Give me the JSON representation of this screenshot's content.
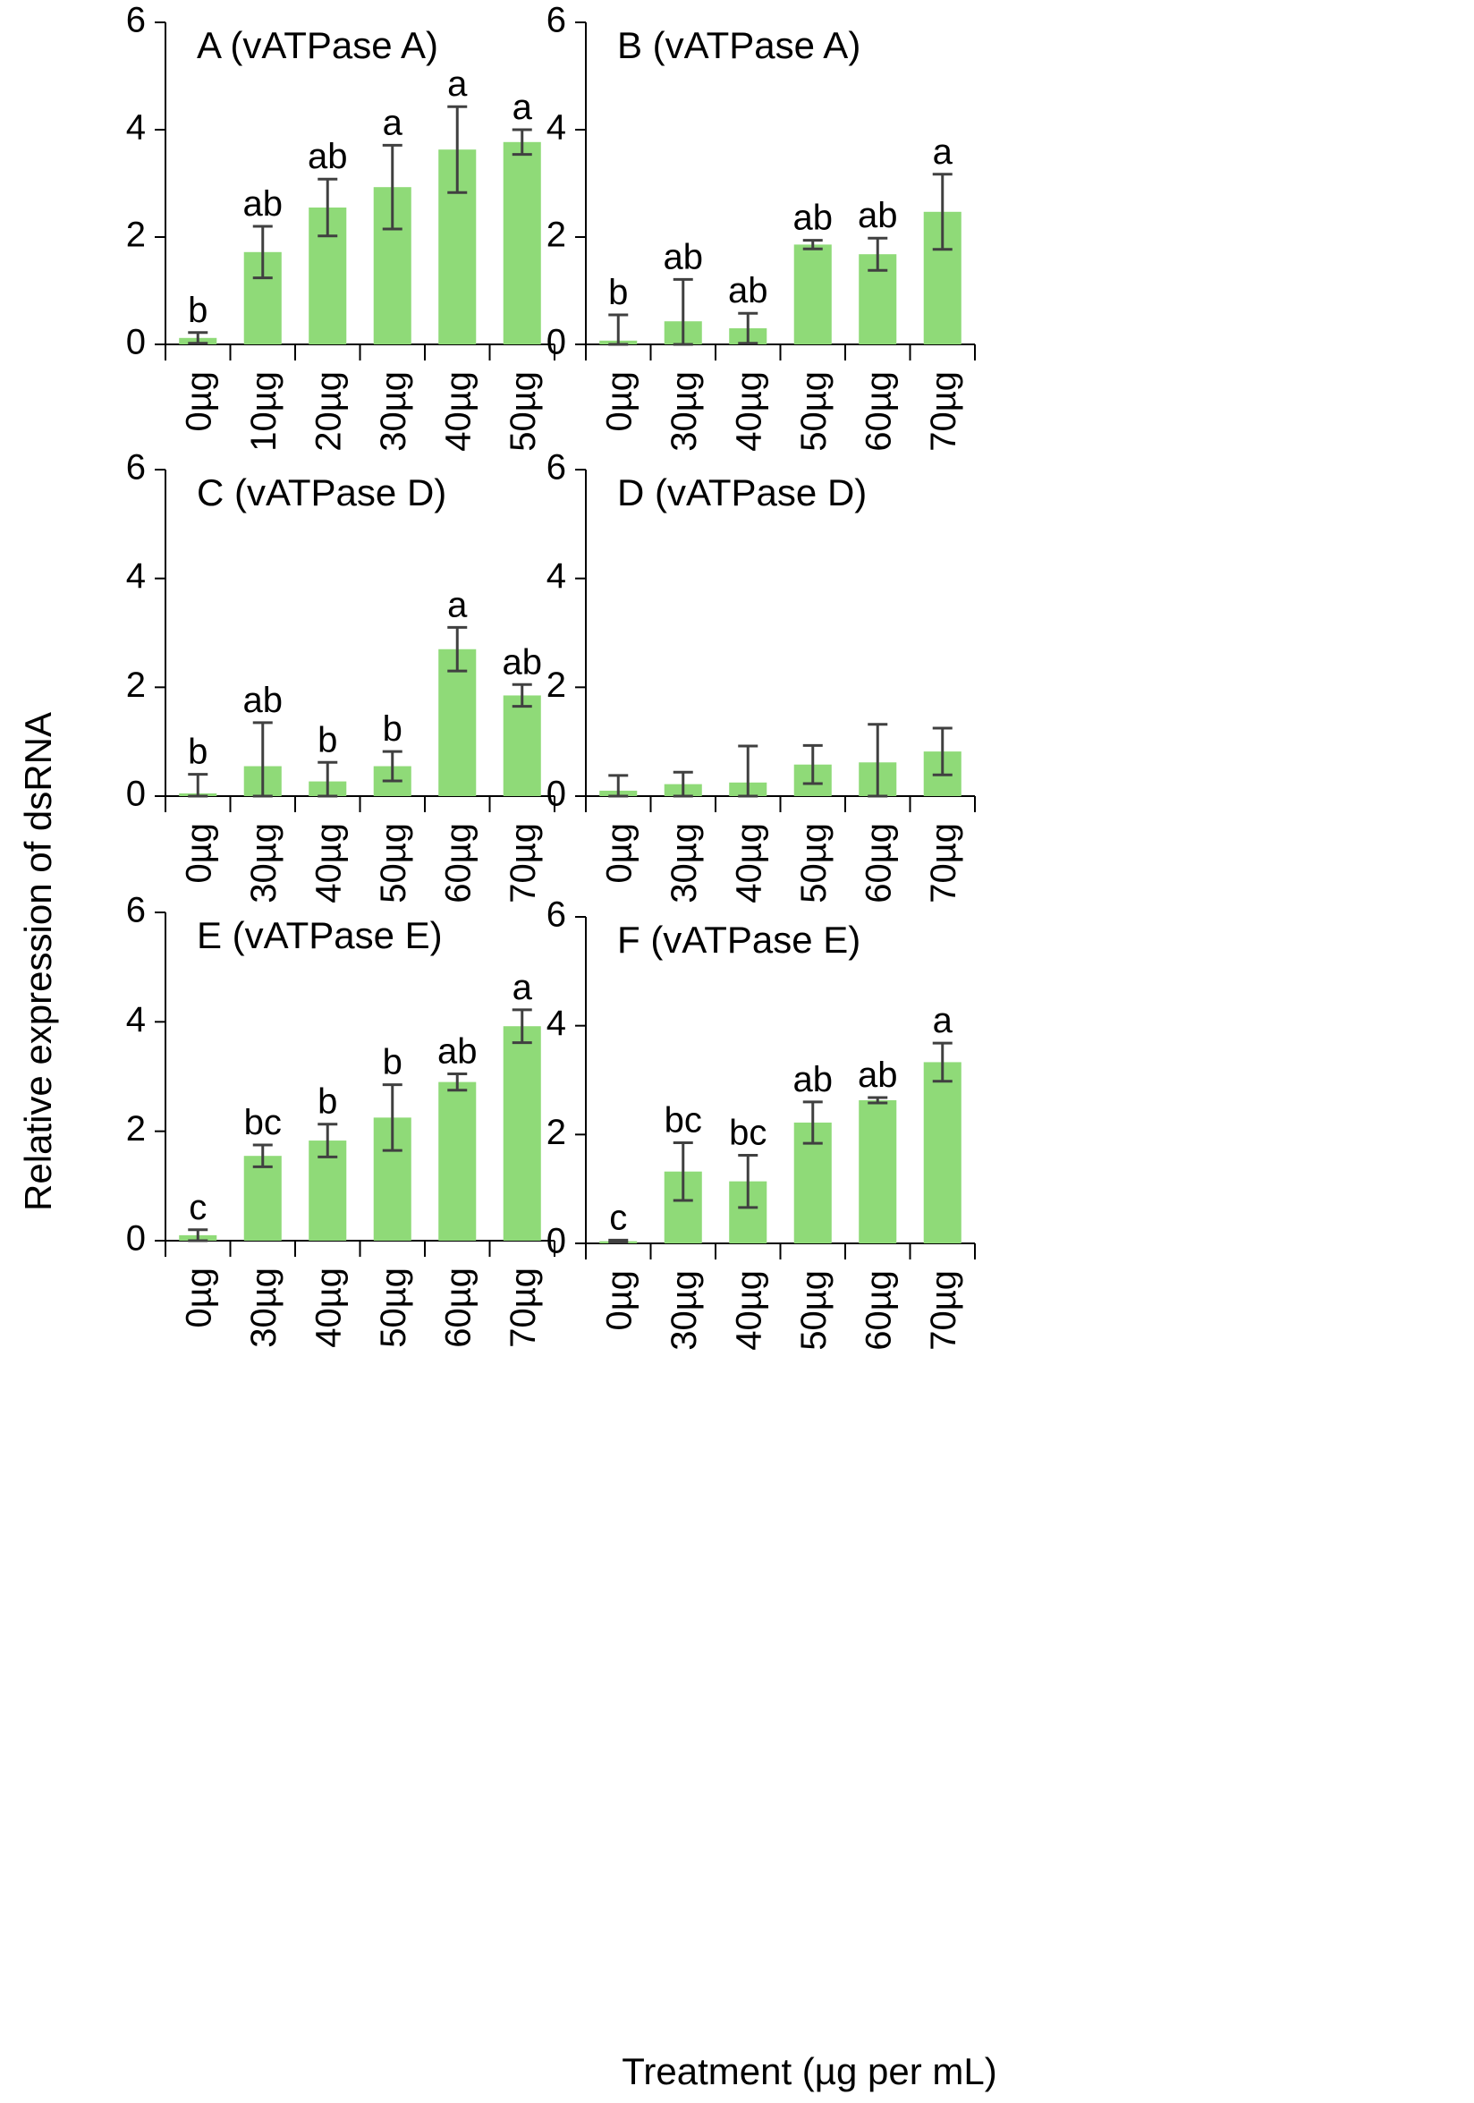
{
  "figure": {
    "ylabel": "Relative expression of dsRNA",
    "xlabel": "Treatment (µg per mL)"
  },
  "colors": {
    "bar": "#8fda78",
    "axis": "#000000",
    "errorbar": "#404040"
  },
  "chart_data": [
    {
      "type": "bar",
      "title": "A (vATPase A)",
      "categories": [
        "0µg",
        "10µg",
        "20µg",
        "30µg",
        "40µg",
        "50µg"
      ],
      "values": [
        0.12,
        1.72,
        2.55,
        2.93,
        3.63,
        3.77
      ],
      "errors": [
        0.1,
        0.48,
        0.53,
        0.78,
        0.8,
        0.23
      ],
      "significance": [
        "b",
        "ab",
        "ab",
        "a",
        "a",
        "a"
      ],
      "ylim": [
        0,
        6
      ],
      "yticks": [
        0,
        2,
        4,
        6
      ]
    },
    {
      "type": "bar",
      "title": "B (vATPase A)",
      "categories": [
        "0µg",
        "30µg",
        "40µg",
        "50µg",
        "60µg",
        "70µg"
      ],
      "values": [
        0.07,
        0.43,
        0.3,
        1.86,
        1.68,
        2.47
      ],
      "errors": [
        0.48,
        0.78,
        0.28,
        0.08,
        0.3,
        0.7
      ],
      "significance": [
        "b",
        "ab",
        "ab",
        "ab",
        "ab",
        "a"
      ],
      "ylim": [
        0,
        6
      ],
      "yticks": [
        0,
        2,
        4,
        6
      ]
    },
    {
      "type": "bar",
      "title": "C (vATPase D)",
      "categories": [
        "0µg",
        "30µg",
        "40µg",
        "50µg",
        "60µg",
        "70µg"
      ],
      "values": [
        0.05,
        0.55,
        0.27,
        0.55,
        2.7,
        1.85
      ],
      "errors": [
        0.35,
        0.8,
        0.35,
        0.27,
        0.4,
        0.2
      ],
      "significance": [
        "b",
        "ab",
        "b",
        "b",
        "a",
        "ab"
      ],
      "ylim": [
        0,
        6
      ],
      "yticks": [
        0,
        2,
        4,
        6
      ]
    },
    {
      "type": "bar",
      "title": "D (vATPase D)",
      "categories": [
        "0µg",
        "30µg",
        "40µg",
        "50µg",
        "60µg",
        "70µg"
      ],
      "values": [
        0.1,
        0.22,
        0.25,
        0.58,
        0.62,
        0.82
      ],
      "errors": [
        0.28,
        0.22,
        0.67,
        0.35,
        0.7,
        0.43
      ],
      "significance": [
        "",
        "",
        "",
        "",
        "",
        ""
      ],
      "ylim": [
        0,
        6
      ],
      "yticks": [
        0,
        2,
        4,
        6
      ]
    },
    {
      "type": "bar",
      "title": "E (vATPase E)",
      "categories": [
        "0µg",
        "30µg",
        "40µg",
        "50µg",
        "60µg",
        "70µg"
      ],
      "values": [
        0.1,
        1.55,
        1.83,
        2.25,
        2.9,
        3.92
      ],
      "errors": [
        0.1,
        0.2,
        0.3,
        0.6,
        0.15,
        0.3
      ],
      "significance": [
        "c",
        "bc",
        "b",
        "b",
        "ab",
        "a"
      ],
      "ylim": [
        0,
        6
      ],
      "yticks": [
        0,
        2,
        4,
        6
      ]
    },
    {
      "type": "bar",
      "title": "F (vATPase E)",
      "categories": [
        "0µg",
        "30µg",
        "40µg",
        "50µg",
        "60µg",
        "70µg"
      ],
      "values": [
        0.04,
        1.32,
        1.14,
        2.22,
        2.63,
        3.33
      ],
      "errors": [
        0.02,
        0.53,
        0.48,
        0.38,
        0.05,
        0.35
      ],
      "significance": [
        "c",
        "bc",
        "bc",
        "ab",
        "ab",
        "a"
      ],
      "ylim": [
        0,
        6
      ],
      "yticks": [
        0,
        2,
        4,
        6
      ]
    }
  ]
}
